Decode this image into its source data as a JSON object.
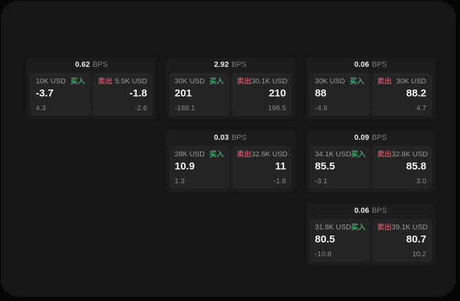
{
  "theme": {
    "outer_bg": "#060606",
    "window_bg": "#161616",
    "card_bg": "#1c1c1c",
    "tile_bg": "#242424",
    "text_primary": "#f5f5f5",
    "text_secondary": "#8b8b8b",
    "buy_color": "#3fa56a",
    "sell_color": "#c04e5c"
  },
  "labels": {
    "bps_unit": "BPS",
    "buy": "买入",
    "sell": "卖出"
  },
  "cards": [
    {
      "bps": "0.62",
      "buy": {
        "size": "10K USD",
        "price": "-3.7",
        "sub": "4.3"
      },
      "sell": {
        "size": "5.5K USD",
        "price": "-1.8",
        "sub": "-2.6"
      }
    },
    {
      "bps": "2.92",
      "buy": {
        "size": "30K USD",
        "price": "201",
        "sub": "-188.1"
      },
      "sell": {
        "size": "30.1K USD",
        "price": "210",
        "sub": "196.5"
      }
    },
    {
      "bps": "0.06",
      "buy": {
        "size": "30K USD",
        "price": "88",
        "sub": "-4.9"
      },
      "sell": {
        "size": "30K USD",
        "price": "88.2",
        "sub": "4.7"
      }
    },
    {
      "bps": "0.03",
      "buy": {
        "size": "28K USD",
        "price": "10.9",
        "sub": "1.3"
      },
      "sell": {
        "size": "32.6K USD",
        "price": "11",
        "sub": "-1.8"
      }
    },
    {
      "bps": "0.09",
      "buy": {
        "size": "34.1K USD",
        "price": "85.5",
        "sub": "-3.1"
      },
      "sell": {
        "size": "32.8K USD",
        "price": "85.8",
        "sub": "3.0"
      }
    },
    {
      "bps": "0.06",
      "buy": {
        "size": "31.8K USD",
        "price": "80.5",
        "sub": "-10.8"
      },
      "sell": {
        "size": "39.1K USD",
        "price": "80.7",
        "sub": "10.2"
      }
    }
  ]
}
